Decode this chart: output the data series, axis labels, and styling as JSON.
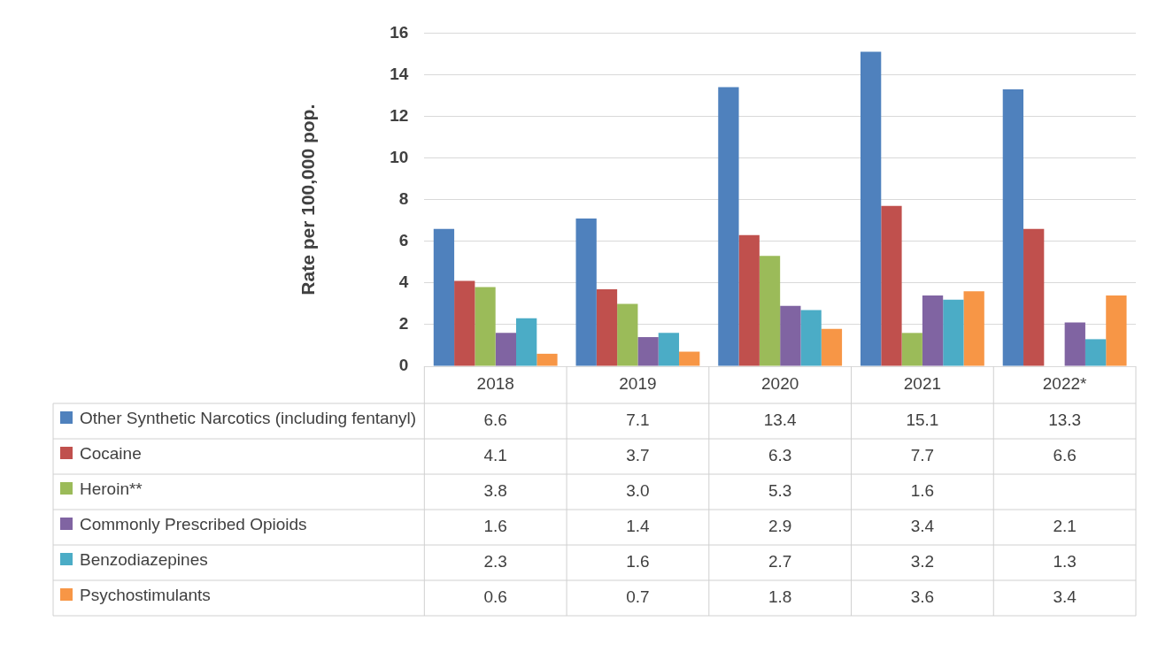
{
  "chart_data": {
    "type": "bar",
    "ylabel": "Rate per 100,000 pop.",
    "categories": [
      "2018",
      "2019",
      "2020",
      "2021",
      "2022*"
    ],
    "series": [
      {
        "name": "Other Synthetic Narcotics (including fentanyl)",
        "color": "#4f81bd",
        "values": [
          6.6,
          7.1,
          13.4,
          15.1,
          13.3
        ],
        "value_labels": [
          "6.6",
          "7.1",
          "13.4",
          "15.1",
          "13.3"
        ]
      },
      {
        "name": "Cocaine",
        "color": "#c0504d",
        "values": [
          4.1,
          3.7,
          6.3,
          7.7,
          6.6
        ],
        "value_labels": [
          "4.1",
          "3.7",
          "6.3",
          "7.7",
          "6.6"
        ]
      },
      {
        "name": "Heroin**",
        "color": "#9bbb59",
        "values": [
          3.8,
          3.0,
          5.3,
          1.6,
          null
        ],
        "value_labels": [
          "3.8",
          "3.0",
          "5.3",
          "1.6",
          null
        ]
      },
      {
        "name": "Commonly Prescribed Opioids",
        "color": "#8064a2",
        "values": [
          1.6,
          1.4,
          2.9,
          3.4,
          2.1
        ],
        "value_labels": [
          "1.6",
          "1.4",
          "2.9",
          "3.4",
          "2.1"
        ]
      },
      {
        "name": "Benzodiazepines",
        "color": "#4bacc6",
        "values": [
          2.3,
          1.6,
          2.7,
          3.2,
          1.3
        ],
        "value_labels": [
          "2.3",
          "1.6",
          "2.7",
          "3.2",
          "1.3"
        ]
      },
      {
        "name": "Psychostimulants",
        "color": "#f79646",
        "values": [
          0.6,
          0.7,
          1.8,
          3.6,
          3.4
        ],
        "value_labels": [
          "0.6",
          "0.7",
          "1.8",
          "3.6",
          "3.4"
        ]
      }
    ],
    "ylim": [
      0,
      16
    ],
    "yticks": [
      0,
      2,
      4,
      6,
      8,
      10,
      12,
      14,
      16
    ],
    "grid": "y",
    "legend": "bottom"
  }
}
